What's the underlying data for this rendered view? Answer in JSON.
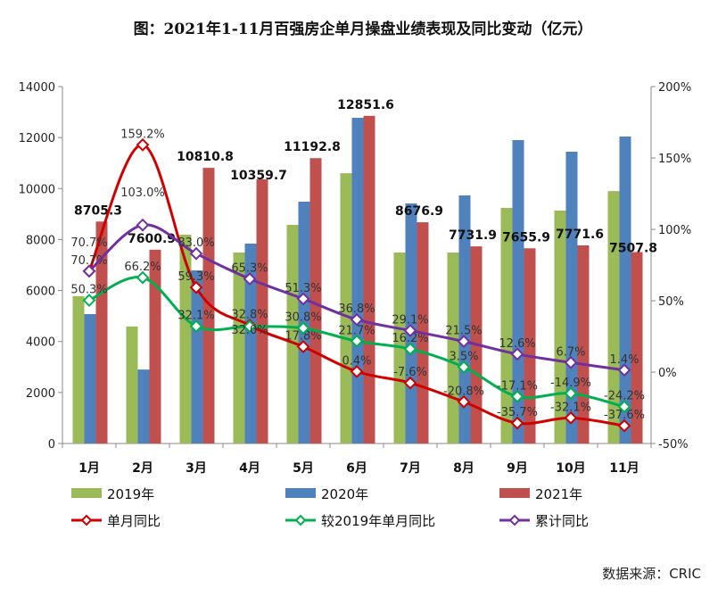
{
  "chart_data": {
    "type": "bar+line",
    "title": "图：2021年1-11月百强房企单月操盘业绩表现及同比变动（亿元）",
    "source": "数据来源：CRIC",
    "categories": [
      "1月",
      "2月",
      "3月",
      "4月",
      "5月",
      "6月",
      "7月",
      "8月",
      "9月",
      "10月",
      "11月"
    ],
    "y_left": {
      "range": [
        0,
        14000
      ],
      "ticks": [
        0,
        2000,
        4000,
        6000,
        8000,
        10000,
        12000,
        14000
      ]
    },
    "y_right": {
      "range": [
        -50,
        200
      ],
      "ticks": [
        "-50%",
        "0%",
        "50%",
        "100%",
        "150%",
        "200%"
      ],
      "tick_values": [
        -50,
        0,
        50,
        100,
        150,
        200
      ]
    },
    "bar_series": [
      {
        "name": "2019年",
        "color": "#9bbb59",
        "values": [
          5780,
          4590,
          8190,
          7490,
          8575,
          10600,
          7490,
          7490,
          9240,
          9135,
          9900
        ]
      },
      {
        "name": "2020年",
        "color": "#4f81bd",
        "values": [
          5075,
          2900,
          6790,
          7840,
          9485,
          12775,
          9415,
          9730,
          11900,
          11445,
          12040
        ]
      },
      {
        "name": "2021年",
        "color": "#c0504d",
        "values": [
          8705.3,
          7600.9,
          10810.8,
          10359.7,
          11192.8,
          12851.6,
          8676.9,
          7731.9,
          7655.9,
          7771.6,
          7507.8
        ],
        "labels": [
          "8705.3",
          "7600.9",
          "10810.8",
          "10359.7",
          "11192.8",
          "12851.6",
          "8676.9",
          "7731.9",
          "7655.9",
          "7771.6",
          "7507.8"
        ]
      }
    ],
    "line_series": [
      {
        "name": "单月同比",
        "color": "#d00000",
        "values": [
          70.7,
          159.2,
          59.3,
          32.8,
          17.8,
          0.4,
          -7.6,
          -20.8,
          -35.7,
          -32.1,
          -37.6
        ]
      },
      {
        "name": "较2019年单月同比",
        "color": "#00b050",
        "values": [
          50.3,
          66.2,
          32.1,
          32.0,
          30.8,
          21.7,
          16.2,
          3.5,
          -17.1,
          -14.9,
          -24.2
        ]
      },
      {
        "name": "累计同比",
        "color": "#7030a0",
        "values": [
          70.7,
          103.0,
          83.0,
          65.3,
          51.3,
          36.8,
          29.1,
          21.5,
          12.6,
          6.7,
          1.4
        ]
      }
    ],
    "legend": "bottom"
  }
}
